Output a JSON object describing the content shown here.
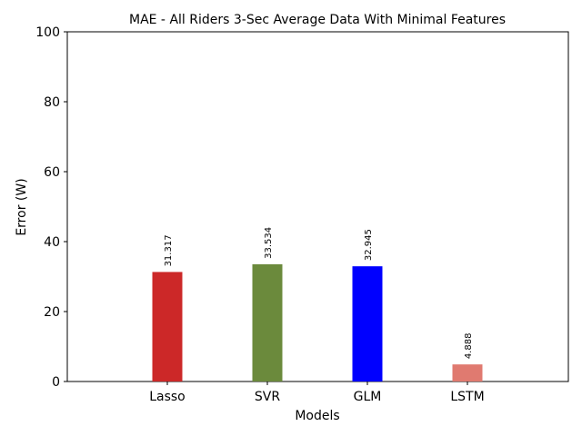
{
  "chart_data": {
    "type": "bar",
    "title": "MAE - All Riders 3-Sec Average Data With Minimal Features",
    "xlabel": "Models",
    "ylabel": "Error (W)",
    "ylim": [
      0,
      100
    ],
    "yticks": [
      0,
      20,
      40,
      60,
      80,
      100
    ],
    "categories": [
      "Lasso",
      "SVR",
      "GLM",
      "LSTM"
    ],
    "values": [
      31.317,
      33.534,
      32.945,
      4.888
    ],
    "value_labels": [
      "31.317",
      "33.534",
      "32.945",
      "4.888"
    ],
    "colors": [
      "#cc2828",
      "#6b8a3c",
      "#0000ff",
      "#e07a70"
    ],
    "grid": false,
    "legend": "none"
  }
}
